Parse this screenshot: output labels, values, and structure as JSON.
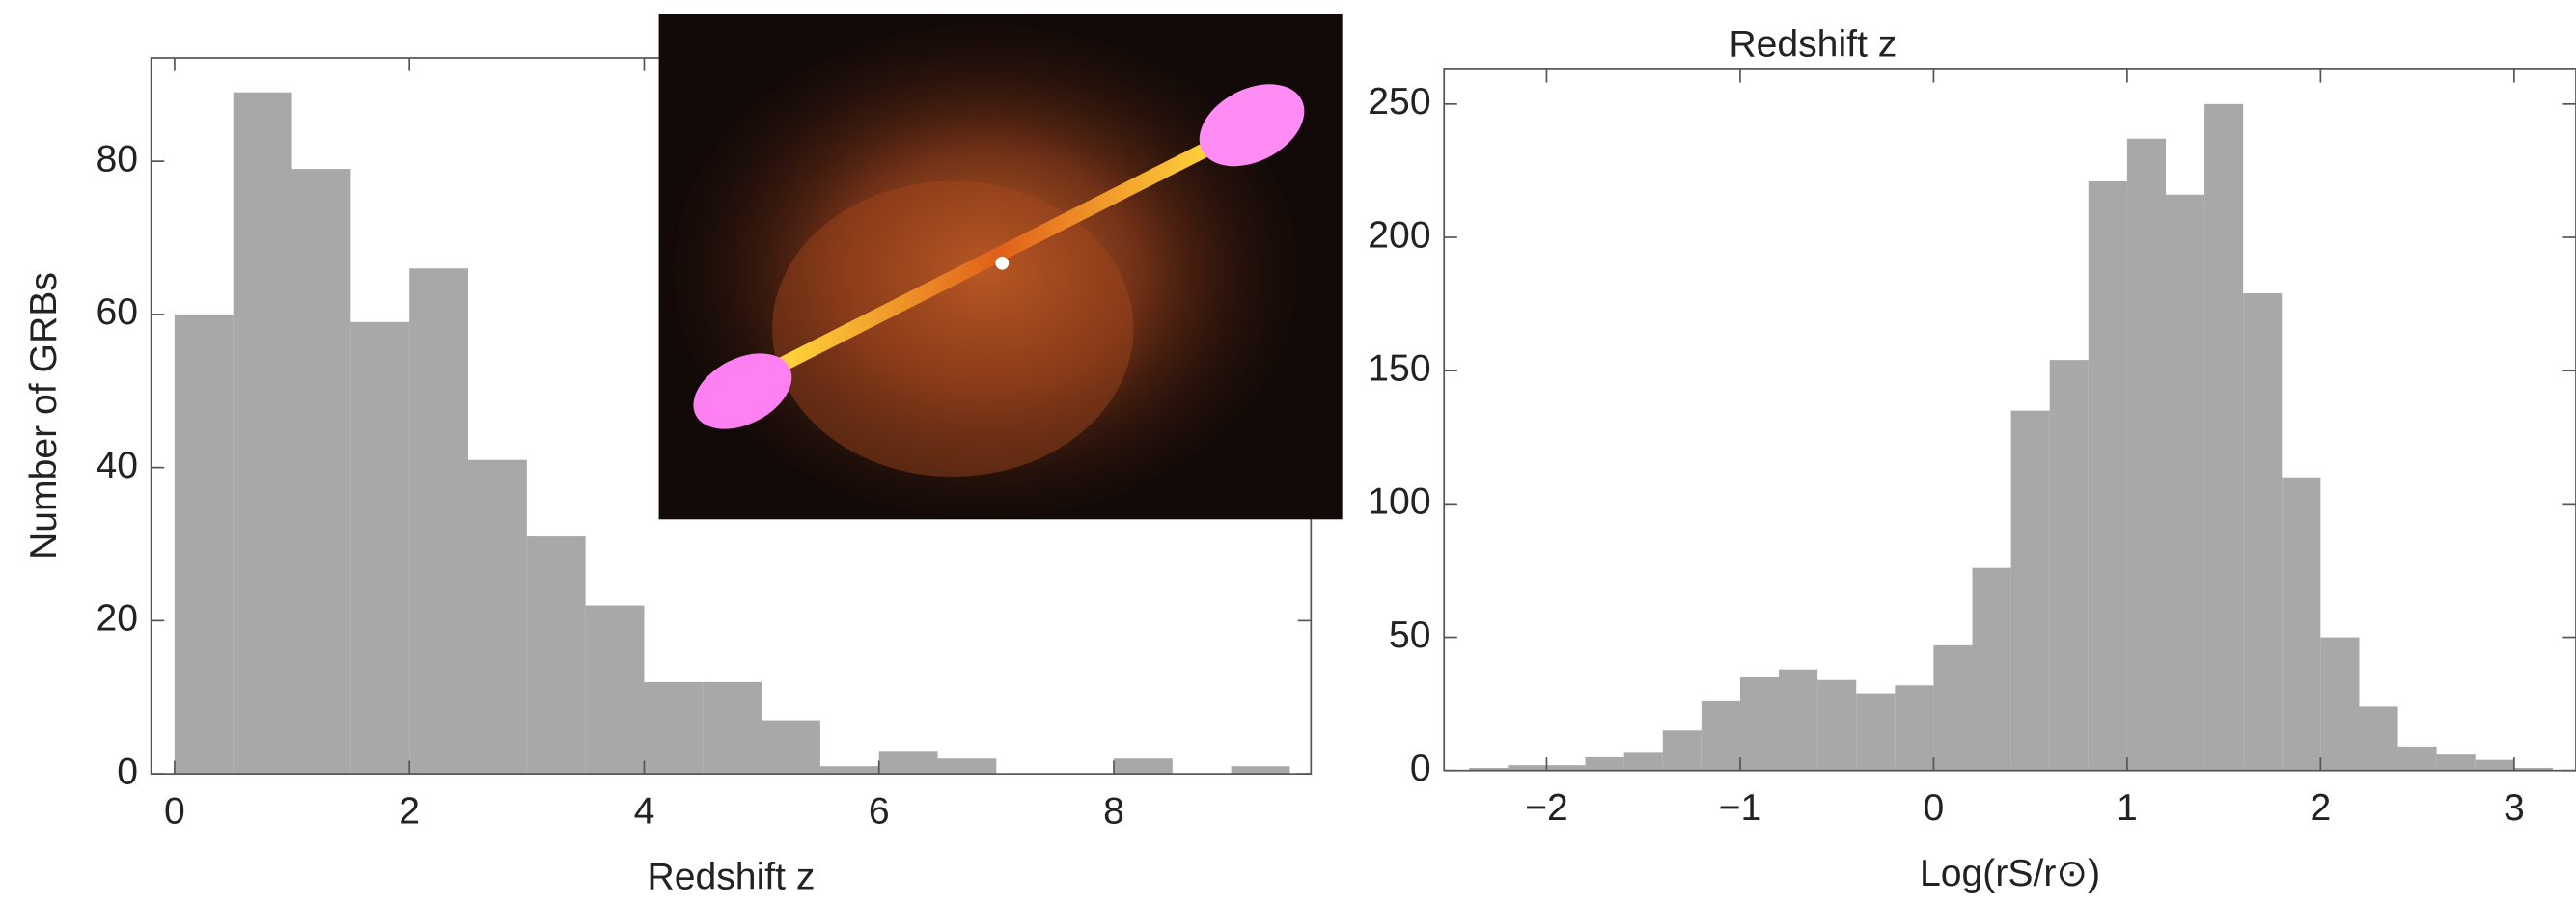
{
  "chart_data": [
    {
      "type": "histogram",
      "xlabel": "Redshift z",
      "ylabel": "Number of GRBs",
      "bins": [
        0,
        0.5,
        1,
        1.5,
        2,
        2.5,
        3,
        3.5,
        4,
        4.5,
        5,
        5.5,
        6,
        6.5,
        7,
        7.5,
        8,
        8.5,
        9,
        9.5
      ],
      "values": [
        60,
        89,
        79,
        59,
        66,
        41,
        31,
        22,
        12,
        12,
        7,
        1,
        3,
        2,
        0,
        0,
        2,
        0,
        1
      ],
      "color": "#a8a8a8",
      "xlim": [
        -0.2,
        9.68
      ],
      "ylim": [
        0,
        93.5
      ],
      "xticks": [
        0,
        2,
        4,
        6,
        8
      ],
      "yticks": [
        0,
        20,
        40,
        60,
        80
      ]
    },
    {
      "type": "histogram",
      "title": "Redshift z",
      "xlabel": "Log(rS/r⊙)",
      "bins": [
        -2.4,
        -2.2,
        -2.0,
        -1.8,
        -1.6,
        -1.4,
        -1.2,
        -1.0,
        -0.8,
        -0.6,
        -0.4,
        -0.2,
        0,
        0.2,
        0.4,
        0.6,
        0.8,
        1.0,
        1.2,
        1.4,
        1.6,
        1.8,
        2.0,
        2.2,
        2.4,
        2.6,
        2.8,
        3.0,
        3.2
      ],
      "values": [
        1,
        2,
        2,
        5,
        7,
        15,
        26,
        35,
        38,
        34,
        29,
        32,
        47,
        76,
        135,
        154,
        221,
        237,
        216,
        250,
        179,
        110,
        50,
        24,
        9,
        6,
        4,
        1
      ],
      "color": "#a8a8a8",
      "xlim": [
        -2.53,
        3.32
      ],
      "ylim": [
        0,
        263
      ],
      "xticks": [
        {
          "value": -2,
          "label": "−2"
        },
        {
          "value": -1,
          "label": "−1"
        },
        0,
        1,
        2,
        3
      ],
      "yticks": [
        0,
        50,
        100,
        150,
        200,
        250
      ]
    }
  ]
}
